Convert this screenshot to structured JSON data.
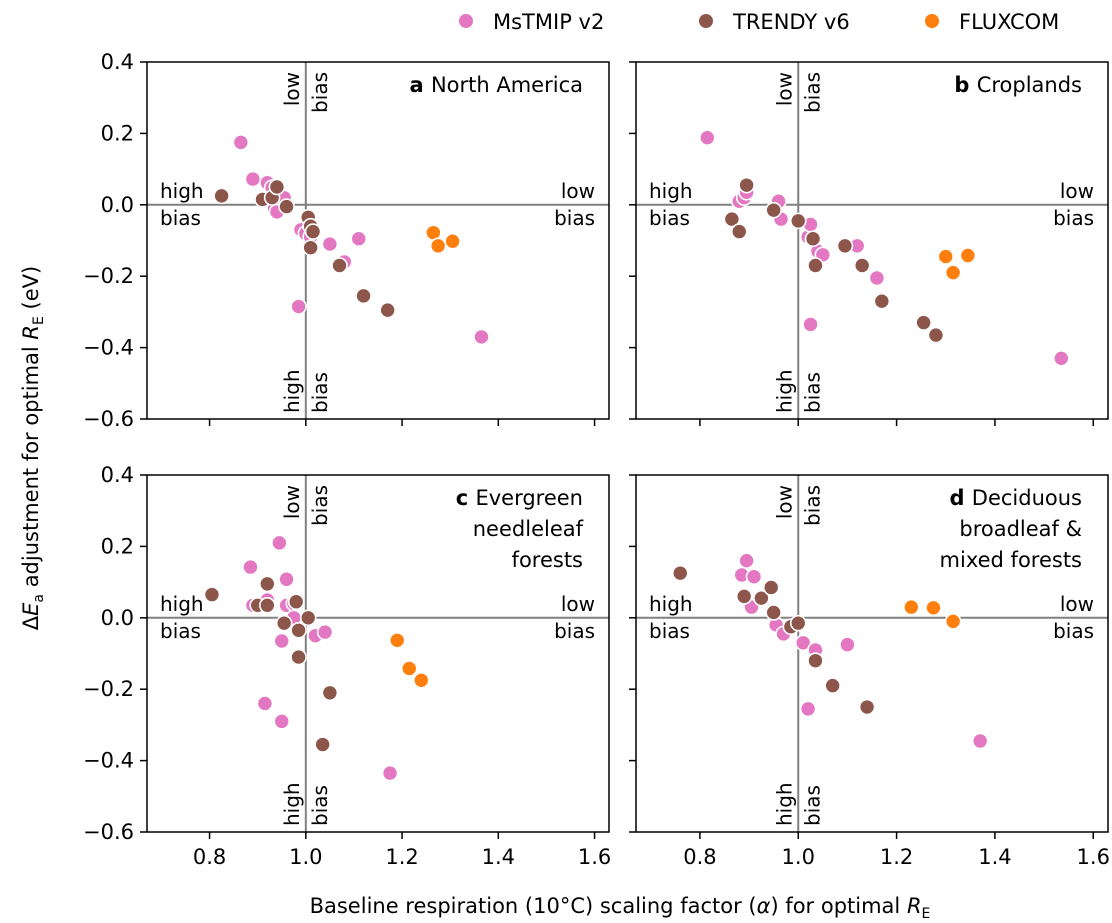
{
  "legend": {
    "items": [
      {
        "label": "MsTMIP v2",
        "color": "#e377c2"
      },
      {
        "label": "TRENDY v6",
        "color": "#8c564b"
      },
      {
        "label": "FLUXCOM",
        "color": "#ff7f0e"
      }
    ]
  },
  "axes": {
    "xlabel_prefix": "Baseline respiration (10°C) scaling factor (",
    "xlabel_symbol": "α",
    "xlabel_mid": ") for optimal ",
    "xlabel_var": "R",
    "xlabel_sub": "E",
    "ylabel_prefix": "Δ",
    "ylabel_var": "E",
    "ylabel_sub": "a",
    "ylabel_mid": " adjustment for optimal ",
    "ylabel_var2": "R",
    "ylabel_sub2": "E",
    "ylabel_suffix": " (eV)",
    "x_tick_labels": [
      "0.8",
      "1.0",
      "1.2",
      "1.4",
      "1.6"
    ],
    "y_tick_labels": [
      "0.4",
      "0.2",
      "0.0",
      "−0.2",
      "−0.4",
      "−0.6"
    ]
  },
  "annotations": {
    "low": "low",
    "high": "high",
    "bias": "bias"
  },
  "chart_data": [
    {
      "type": "scatter",
      "panel_letter": "a",
      "title_lines": [
        "North America"
      ],
      "xlim": [
        0.67,
        1.63
      ],
      "ylim": [
        -0.6,
        0.4
      ],
      "reference_lines": {
        "x": 1.0,
        "y": 0.0
      },
      "series": [
        {
          "name": "MsTMIP v2",
          "color": "#e377c2",
          "points": [
            [
              0.865,
              0.175
            ],
            [
              0.89,
              0.072
            ],
            [
              0.92,
              0.062
            ],
            [
              0.93,
              0.048
            ],
            [
              0.94,
              0.03
            ],
            [
              0.95,
              0.01
            ],
            [
              0.955,
              0.02
            ],
            [
              0.935,
              -0.01
            ],
            [
              0.94,
              -0.02
            ],
            [
              0.99,
              -0.07
            ],
            [
              1.0,
              -0.08
            ],
            [
              1.01,
              -0.09
            ],
            [
              1.05,
              -0.11
            ],
            [
              1.11,
              -0.095
            ],
            [
              1.08,
              -0.16
            ],
            [
              0.985,
              -0.285
            ],
            [
              1.365,
              -0.37
            ]
          ]
        },
        {
          "name": "TRENDY v6",
          "color": "#8c564b",
          "points": [
            [
              0.825,
              0.025
            ],
            [
              0.91,
              0.015
            ],
            [
              0.93,
              0.02
            ],
            [
              0.94,
              0.05
            ],
            [
              0.96,
              -0.005
            ],
            [
              1.005,
              -0.035
            ],
            [
              1.01,
              -0.06
            ],
            [
              1.015,
              -0.075
            ],
            [
              1.01,
              -0.12
            ],
            [
              1.07,
              -0.17
            ],
            [
              1.12,
              -0.255
            ],
            [
              1.17,
              -0.295
            ]
          ]
        },
        {
          "name": "FLUXCOM",
          "color": "#ff7f0e",
          "points": [
            [
              1.265,
              -0.078
            ],
            [
              1.275,
              -0.115
            ],
            [
              1.305,
              -0.102
            ]
          ]
        }
      ]
    },
    {
      "type": "scatter",
      "panel_letter": "b",
      "title_lines": [
        "Croplands"
      ],
      "xlim": [
        0.67,
        1.63
      ],
      "ylim": [
        -0.6,
        0.4
      ],
      "reference_lines": {
        "x": 1.0,
        "y": 0.0
      },
      "series": [
        {
          "name": "MsTMIP v2",
          "color": "#e377c2",
          "points": [
            [
              0.815,
              0.188
            ],
            [
              0.88,
              0.01
            ],
            [
              0.89,
              0.02
            ],
            [
              0.895,
              0.035
            ],
            [
              0.96,
              0.01
            ],
            [
              0.965,
              -0.04
            ],
            [
              1.02,
              -0.09
            ],
            [
              1.025,
              -0.055
            ],
            [
              1.03,
              -0.1
            ],
            [
              1.04,
              -0.13
            ],
            [
              1.05,
              -0.14
            ],
            [
              1.12,
              -0.115
            ],
            [
              1.16,
              -0.205
            ],
            [
              1.025,
              -0.335
            ],
            [
              1.535,
              -0.43
            ]
          ]
        },
        {
          "name": "TRENDY v6",
          "color": "#8c564b",
          "points": [
            [
              0.865,
              -0.04
            ],
            [
              0.88,
              -0.075
            ],
            [
              0.895,
              0.055
            ],
            [
              0.95,
              -0.015
            ],
            [
              1.0,
              -0.045
            ],
            [
              1.03,
              -0.095
            ],
            [
              1.035,
              -0.17
            ],
            [
              1.095,
              -0.115
            ],
            [
              1.13,
              -0.17
            ],
            [
              1.17,
              -0.27
            ],
            [
              1.255,
              -0.33
            ],
            [
              1.28,
              -0.365
            ]
          ]
        },
        {
          "name": "FLUXCOM",
          "color": "#ff7f0e",
          "points": [
            [
              1.3,
              -0.145
            ],
            [
              1.315,
              -0.19
            ],
            [
              1.345,
              -0.142
            ]
          ]
        }
      ]
    },
    {
      "type": "scatter",
      "panel_letter": "c",
      "title_lines": [
        "Evergreen",
        "needleleaf",
        "forests"
      ],
      "xlim": [
        0.67,
        1.63
      ],
      "ylim": [
        -0.6,
        0.4
      ],
      "reference_lines": {
        "x": 1.0,
        "y": 0.0
      },
      "series": [
        {
          "name": "MsTMIP v2",
          "color": "#e377c2",
          "points": [
            [
              0.945,
              0.21
            ],
            [
              0.885,
              0.142
            ],
            [
              0.96,
              0.108
            ],
            [
              0.89,
              0.035
            ],
            [
              0.92,
              0.05
            ],
            [
              0.96,
              0.035
            ],
            [
              0.975,
              0.04
            ],
            [
              0.975,
              0.0
            ],
            [
              0.95,
              -0.065
            ],
            [
              1.02,
              -0.05
            ],
            [
              1.04,
              -0.04
            ],
            [
              0.915,
              -0.24
            ],
            [
              0.95,
              -0.29
            ],
            [
              1.175,
              -0.435
            ]
          ]
        },
        {
          "name": "TRENDY v6",
          "color": "#8c564b",
          "points": [
            [
              0.805,
              0.065
            ],
            [
              0.92,
              0.095
            ],
            [
              0.9,
              0.035
            ],
            [
              0.92,
              0.035
            ],
            [
              0.98,
              0.045
            ],
            [
              1.005,
              0.0
            ],
            [
              0.955,
              -0.015
            ],
            [
              0.985,
              -0.035
            ],
            [
              0.985,
              -0.11
            ],
            [
              1.05,
              -0.21
            ],
            [
              1.035,
              -0.355
            ]
          ]
        },
        {
          "name": "FLUXCOM",
          "color": "#ff7f0e",
          "points": [
            [
              1.19,
              -0.063
            ],
            [
              1.215,
              -0.142
            ],
            [
              1.24,
              -0.175
            ]
          ]
        }
      ]
    },
    {
      "type": "scatter",
      "panel_letter": "d",
      "title_lines": [
        "Deciduous",
        "broadleaf &",
        "mixed forests"
      ],
      "xlim": [
        0.67,
        1.63
      ],
      "ylim": [
        -0.6,
        0.4
      ],
      "reference_lines": {
        "x": 1.0,
        "y": 0.0
      },
      "series": [
        {
          "name": "MsTMIP v2",
          "color": "#e377c2",
          "points": [
            [
              0.895,
              0.16
            ],
            [
              0.885,
              0.12
            ],
            [
              0.91,
              0.115
            ],
            [
              0.905,
              0.03
            ],
            [
              0.955,
              -0.02
            ],
            [
              0.97,
              -0.045
            ],
            [
              1.01,
              -0.07
            ],
            [
              1.035,
              -0.09
            ],
            [
              1.1,
              -0.075
            ],
            [
              1.02,
              -0.255
            ],
            [
              1.37,
              -0.345
            ]
          ]
        },
        {
          "name": "TRENDY v6",
          "color": "#8c564b",
          "points": [
            [
              0.76,
              0.125
            ],
            [
              0.89,
              0.06
            ],
            [
              0.925,
              0.055
            ],
            [
              0.945,
              0.085
            ],
            [
              0.95,
              0.015
            ],
            [
              0.985,
              -0.025
            ],
            [
              1.0,
              -0.015
            ],
            [
              1.035,
              -0.12
            ],
            [
              1.07,
              -0.19
            ],
            [
              1.14,
              -0.25
            ]
          ]
        },
        {
          "name": "FLUXCOM",
          "color": "#ff7f0e",
          "points": [
            [
              1.23,
              0.03
            ],
            [
              1.275,
              0.028
            ],
            [
              1.315,
              -0.01
            ]
          ]
        }
      ]
    }
  ]
}
